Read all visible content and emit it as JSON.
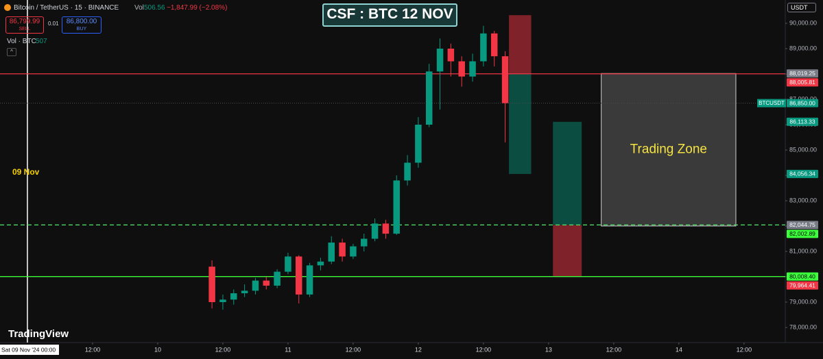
{
  "header": {
    "symbol": "Bitcoin / TetherUS · 15 · BINANCE",
    "vol_label": "Vol",
    "vol_value": "506.56",
    "change": "−1,847.99 (−2.08%)",
    "sell_price": "86,799.99",
    "sell_label": "SELL",
    "spread": "0.01",
    "buy_price": "86,800.00",
    "buy_label": "BUY",
    "vol_indicator": "Vol · BTC",
    "vol_indicator_value": "507",
    "currency": "USDT",
    "watermark": "TradingView"
  },
  "chart_data": {
    "type": "candlestick",
    "title": "CSF : BTC 12 NOV",
    "x": [
      34,
      36,
      38,
      40,
      42,
      44,
      46,
      48,
      50,
      52,
      54,
      56,
      58,
      60,
      62,
      64,
      66,
      68,
      70,
      72,
      74,
      76,
      78,
      80,
      82,
      84,
      86,
      88
    ],
    "open": [
      80400,
      79000,
      79100,
      79350,
      79450,
      79850,
      79650,
      80200,
      80800,
      79300,
      80450,
      80600,
      81350,
      80800,
      81200,
      81500,
      82100,
      81700,
      83800,
      84500,
      86000,
      88100,
      89000,
      88500,
      87900,
      88500,
      89600,
      88700
    ],
    "high": [
      80650,
      79300,
      79500,
      79700,
      79950,
      80000,
      80300,
      80950,
      80850,
      80550,
      80750,
      81600,
      81500,
      81300,
      81700,
      82300,
      82250,
      84000,
      84800,
      86300,
      88400,
      89400,
      89200,
      88700,
      88800,
      89900,
      89700,
      88900
    ],
    "low": [
      78750,
      78700,
      78900,
      79200,
      79300,
      79500,
      79550,
      80100,
      78950,
      79200,
      80250,
      80500,
      80600,
      80700,
      81000,
      81400,
      81500,
      81650,
      83600,
      84300,
      85900,
      86600,
      87900,
      87500,
      87700,
      88300,
      88300,
      85300
    ],
    "close": [
      79000,
      79100,
      79350,
      79450,
      79850,
      79650,
      80200,
      80800,
      79300,
      80450,
      80600,
      81350,
      80800,
      81200,
      81500,
      82100,
      81700,
      83800,
      84500,
      86000,
      88100,
      89000,
      88500,
      87900,
      88500,
      89600,
      88700,
      86850
    ],
    "up_color": "#089981",
    "down_color": "#f23645",
    "ylim": [
      77405,
      90919
    ],
    "yticks": [
      {
        "value": 78000,
        "label": "78,000.00"
      },
      {
        "value": 79000,
        "label": "79,000.00"
      },
      {
        "value": 80000,
        "label": "80,000.00"
      },
      {
        "value": 81000,
        "label": "81,000.00"
      },
      {
        "value": 82000,
        "label": "82,000.00"
      },
      {
        "value": 83000,
        "label": "83,000.00"
      },
      {
        "value": 84000,
        "label": "84,000.00"
      },
      {
        "value": 85000,
        "label": "85,000.00"
      },
      {
        "value": 86000,
        "label": "86,000.00"
      },
      {
        "value": 87000,
        "label": "87,000.00"
      },
      {
        "value": 88000,
        "label": "88,000.00"
      },
      {
        "value": 89000,
        "label": "89,000.00"
      },
      {
        "value": 90000,
        "label": "90,000.00"
      }
    ],
    "xlim": [
      -5.05,
      139.6
    ],
    "xticks": [
      {
        "value": 12,
        "label": "12:00"
      },
      {
        "value": 24,
        "label": "10"
      },
      {
        "value": 36,
        "label": "12:00"
      },
      {
        "value": 48,
        "label": "11"
      },
      {
        "value": 60,
        "label": "12:00"
      },
      {
        "value": 72,
        "label": "12"
      },
      {
        "value": 84,
        "label": "12:00"
      },
      {
        "value": 96,
        "label": "13"
      },
      {
        "value": 108,
        "label": "12:00"
      },
      {
        "value": 120,
        "label": "14"
      },
      {
        "value": 132,
        "label": "12:00"
      }
    ],
    "cursor": {
      "x": 0,
      "label": "09 Nov",
      "axis_label": "Sat 09 Nov '24   00:00"
    },
    "hlines": [
      {
        "value": 88005.81,
        "color": "#f23645",
        "style": "solid"
      },
      {
        "value": 82044.75,
        "color": "#4cd964",
        "style": "dashed"
      },
      {
        "value": 80008.4,
        "color": "#3cff3c",
        "style": "solid"
      },
      {
        "value": 86850,
        "color": "#4a4a4a",
        "style": "dotted"
      }
    ],
    "price_tags": [
      {
        "value": 88019.25,
        "label": "88,019.25",
        "color": "#787b86"
      },
      {
        "value": 88005.81,
        "label": "88,005.81",
        "color": "#f23645"
      },
      {
        "value": 86850,
        "label": "86,850.00",
        "name": "BTCUSDT",
        "color": "#089981"
      },
      {
        "value": 86113.33,
        "label": "86,113.33",
        "color": "#089981"
      },
      {
        "value": 84056.34,
        "label": "84,056.34",
        "color": "#089981"
      },
      {
        "value": 82044.75,
        "label": "82,044.75",
        "color": "#787b86"
      },
      {
        "value": 82002.89,
        "label": "82,002.89",
        "color": "#3cff3c"
      },
      {
        "value": 80008.4,
        "label": "80,008.40",
        "color": "#3cff3c"
      },
      {
        "value": 79964.41,
        "label": "79,964.41",
        "color": "#f23645"
      }
    ],
    "positions": [
      {
        "x": [
          88.7,
          92.8
        ],
        "entry": 88005.81,
        "stop": 90320,
        "target": 84056.34
      },
      {
        "x": [
          96.8,
          102.1
        ],
        "entry": 82044.75,
        "stop": 80008.4,
        "target": 86113.33
      }
    ],
    "zone": {
      "label": "Trading Zone",
      "x": [
        105.7,
        130.5
      ],
      "top": 88019.25,
      "bottom": 82002.89
    }
  }
}
